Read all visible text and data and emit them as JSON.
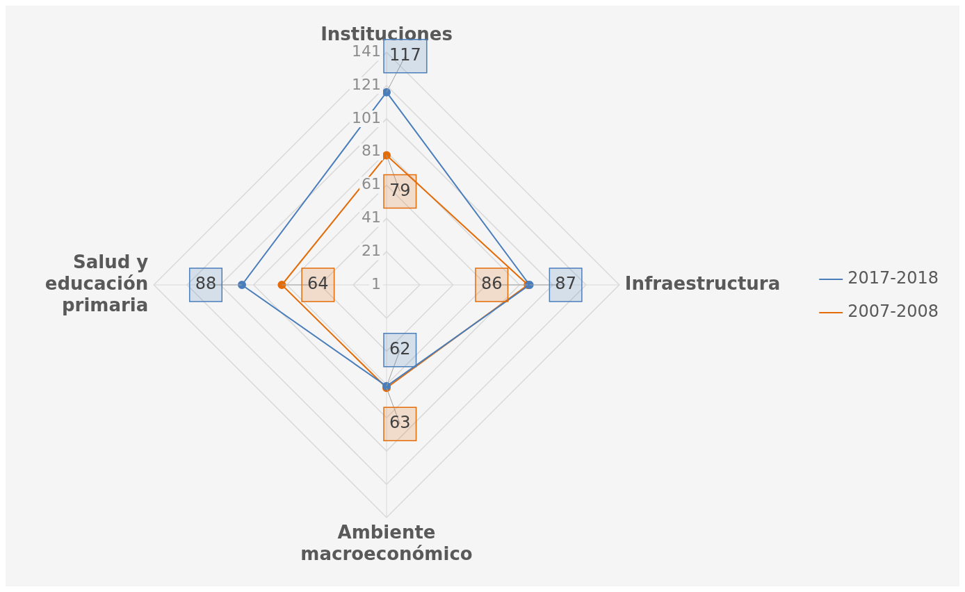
{
  "chart_data": {
    "type": "radar",
    "categories": [
      "Instituciones",
      "Infraestructura",
      "Ambiente macroeconómico",
      "Salud y educación primaria"
    ],
    "series": [
      {
        "name": "2017-2018",
        "color": "#4a7ebb",
        "values": [
          117,
          87,
          62,
          88
        ]
      },
      {
        "name": "2007-2008",
        "color": "#e36c09",
        "values": [
          79,
          86,
          63,
          64
        ]
      }
    ],
    "ylim": [
      1,
      141
    ],
    "yticks": [
      1,
      21,
      41,
      61,
      81,
      101,
      121,
      141
    ],
    "data_labels": true,
    "legend": "right",
    "marker": "circle",
    "grid": true
  }
}
